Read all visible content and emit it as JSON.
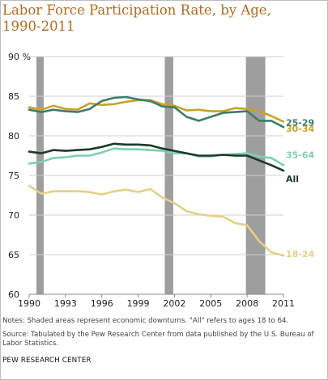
{
  "title_lines": [
    "Labor Force Participation Rate, by Age,",
    "1990-2011"
  ],
  "notes": {
    "line1": "Notes: Shaded areas represent economic downturns. \"All\" refers to ages 18 to 64.",
    "line2": "Source: Tabulated by the Pew Research Center from  data published by the U.S. Bureau of Labor Statistics."
  },
  "organization": "PEW RESEARCH CENTER",
  "colors": {
    "grid": "#d0d0d0",
    "axis": "#888888",
    "recession": "#9e9e9e"
  },
  "chart_data": {
    "type": "line",
    "x": [
      1990,
      1991,
      1992,
      1993,
      1994,
      1995,
      1996,
      1997,
      1998,
      1999,
      2000,
      2001,
      2002,
      2003,
      2004,
      2005,
      2006,
      2007,
      2008,
      2009,
      2010,
      2011
    ],
    "xlim": [
      1990,
      2011
    ],
    "xticks": [
      1990,
      1993,
      1996,
      1999,
      2002,
      2005,
      2008,
      2011
    ],
    "ylim": [
      60,
      90
    ],
    "yticks": [
      60,
      65,
      70,
      75,
      80,
      85,
      90
    ],
    "ytick_labels": [
      "60",
      "65",
      "70",
      "75",
      "80",
      "85",
      "90 %"
    ],
    "grid": true,
    "recessions": [
      [
        1990.6,
        1991.2
      ],
      [
        2001.2,
        2001.9
      ],
      [
        2007.9,
        2009.5
      ]
    ],
    "series": [
      {
        "name": "30-34",
        "color": "#c9a227",
        "values": [
          83.6,
          83.3,
          83.8,
          83.4,
          83.3,
          84.1,
          83.9,
          84.0,
          84.3,
          84.5,
          84.5,
          84.0,
          83.8,
          83.2,
          83.3,
          83.1,
          83.1,
          83.5,
          83.4,
          83.1,
          82.5,
          81.8
        ]
      },
      {
        "name": "25-29",
        "color": "#3c7d69",
        "values": [
          83.3,
          83.0,
          83.3,
          83.1,
          83.0,
          83.4,
          84.4,
          84.8,
          84.9,
          84.6,
          84.4,
          83.7,
          83.6,
          82.4,
          81.9,
          82.4,
          82.9,
          83.0,
          83.1,
          81.9,
          81.9,
          81.1
        ]
      },
      {
        "name": "35-64",
        "color": "#7fcdb4",
        "values": [
          76.5,
          76.7,
          77.2,
          77.3,
          77.5,
          77.5,
          77.9,
          78.4,
          78.3,
          78.3,
          78.2,
          78.1,
          77.8,
          77.8,
          77.4,
          77.4,
          77.6,
          77.7,
          77.8,
          77.4,
          77.2,
          76.3
        ]
      },
      {
        "name": "All",
        "color": "#1c3a28",
        "values": [
          78.0,
          77.8,
          78.2,
          78.1,
          78.2,
          78.3,
          78.6,
          79.0,
          78.9,
          78.9,
          78.8,
          78.4,
          78.1,
          77.8,
          77.5,
          77.5,
          77.6,
          77.5,
          77.5,
          76.9,
          76.3,
          75.6
        ]
      },
      {
        "name": "18-24",
        "color": "#e6cf86",
        "values": [
          73.7,
          72.7,
          73.0,
          73.0,
          73.0,
          72.9,
          72.6,
          73.0,
          73.2,
          72.9,
          73.3,
          72.2,
          71.5,
          70.5,
          70.1,
          69.9,
          69.8,
          69.0,
          68.7,
          66.7,
          65.3,
          64.9
        ]
      }
    ]
  }
}
